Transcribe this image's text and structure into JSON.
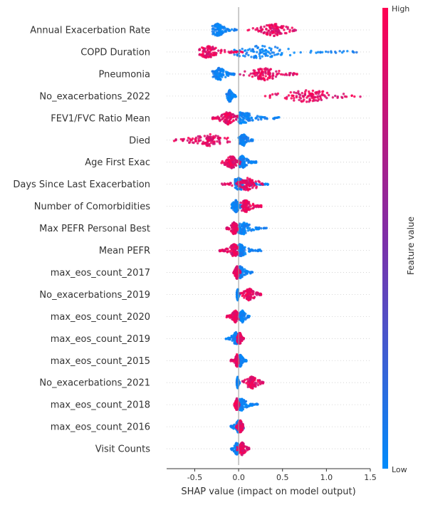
{
  "chart_data": {
    "type": "scatter",
    "subtype": "shap-beeswarm",
    "xlabel": "SHAP value (impact on model output)",
    "xlim": [
      -0.82,
      1.5
    ],
    "x_ticks": [
      "-0.5",
      "0.0",
      "0.5",
      "1.0",
      "1.5"
    ],
    "x_tick_values": [
      -0.5,
      0.0,
      0.5,
      1.0,
      1.5
    ],
    "zero_line": true,
    "grid": false,
    "colorbar": {
      "label": "Feature value",
      "high_label": "High",
      "low_label": "Low",
      "high_color": "#ff0052",
      "mid_color": "#7e2ea8",
      "low_color": "#008bfb"
    },
    "features": [
      {
        "name": "Annual Exacerbation Rate",
        "low": {
          "min": -0.3,
          "max": -0.02,
          "center": -0.24
        },
        "high": {
          "min": 0.09,
          "max": 0.67,
          "center": 0.4
        }
      },
      {
        "name": "COPD Duration",
        "low": {
          "min": -0.05,
          "max": 1.35,
          "center": 0.25
        },
        "high": {
          "min": -0.45,
          "max": 0.05,
          "center": -0.35
        }
      },
      {
        "name": "Pneumonia",
        "low": {
          "min": -0.3,
          "max": -0.04,
          "center": -0.22
        },
        "high": {
          "min": -0.02,
          "max": 0.67,
          "center": 0.3
        }
      },
      {
        "name": "No_exacerbations_2022",
        "low": {
          "min": -0.14,
          "max": -0.03,
          "center": -0.1
        },
        "high": {
          "min": 0.3,
          "max": 1.4,
          "center": 0.8
        }
      },
      {
        "name": "FEV1/FVC Ratio Mean",
        "low": {
          "min": 0.0,
          "max": 0.47,
          "center": 0.05
        },
        "high": {
          "min": -0.3,
          "max": 0.0,
          "center": -0.12
        }
      },
      {
        "name": "Died",
        "low": {
          "min": 0.0,
          "max": 0.18,
          "center": 0.05
        },
        "high": {
          "min": -0.75,
          "max": -0.1,
          "center": -0.35
        }
      },
      {
        "name": "Age First Exac",
        "low": {
          "min": 0.0,
          "max": 0.2,
          "center": 0.04
        },
        "high": {
          "min": -0.22,
          "max": 0.02,
          "center": -0.08
        }
      },
      {
        "name": "Days Since Last Exacerbation",
        "low": {
          "min": -0.04,
          "max": 0.34,
          "center": 0.0
        },
        "high": {
          "min": -0.2,
          "max": 0.28,
          "center": 0.1
        }
      },
      {
        "name": "Number of Comorbidities",
        "low": {
          "min": -0.08,
          "max": 0.05,
          "center": -0.03
        },
        "high": {
          "min": 0.02,
          "max": 0.27,
          "center": 0.08
        }
      },
      {
        "name": "Max PEFR Personal Best",
        "low": {
          "min": 0.0,
          "max": 0.32,
          "center": 0.05
        },
        "high": {
          "min": -0.14,
          "max": 0.0,
          "center": -0.05
        }
      },
      {
        "name": "Mean PEFR",
        "low": {
          "min": 0.0,
          "max": 0.26,
          "center": 0.02
        },
        "high": {
          "min": -0.22,
          "max": 0.0,
          "center": -0.05
        }
      },
      {
        "name": "max_eos_count_2017",
        "low": {
          "min": -0.02,
          "max": 0.16,
          "center": 0.02
        },
        "high": {
          "min": -0.06,
          "max": 0.02,
          "center": -0.02
        }
      },
      {
        "name": "No_exacerbations_2019",
        "low": {
          "min": -0.02,
          "max": 0.01,
          "center": -0.01
        },
        "high": {
          "min": 0.02,
          "max": 0.26,
          "center": 0.12
        }
      },
      {
        "name": "max_eos_count_2020",
        "low": {
          "min": 0.0,
          "max": 0.13,
          "center": 0.04
        },
        "high": {
          "min": -0.14,
          "max": 0.0,
          "center": -0.04
        }
      },
      {
        "name": "max_eos_count_2019",
        "low": {
          "min": -0.15,
          "max": 0.0,
          "center": -0.03
        },
        "high": {
          "min": -0.02,
          "max": 0.06,
          "center": 0.01
        }
      },
      {
        "name": "max_eos_count_2015",
        "low": {
          "min": 0.0,
          "max": 0.09,
          "center": 0.02
        },
        "high": {
          "min": -0.09,
          "max": 0.0,
          "center": -0.02
        }
      },
      {
        "name": "No_exacerbations_2021",
        "low": {
          "min": -0.02,
          "max": 0.01,
          "center": -0.01
        },
        "high": {
          "min": 0.04,
          "max": 0.29,
          "center": 0.15
        }
      },
      {
        "name": "max_eos_count_2018",
        "low": {
          "min": 0.0,
          "max": 0.22,
          "center": 0.03
        },
        "high": {
          "min": -0.05,
          "max": 0.01,
          "center": -0.02
        }
      },
      {
        "name": "max_eos_count_2016",
        "low": {
          "min": -0.09,
          "max": 0.06,
          "center": 0.0
        },
        "high": {
          "min": -0.03,
          "max": 0.06,
          "center": 0.02
        }
      },
      {
        "name": "Visit Counts",
        "low": {
          "min": -0.09,
          "max": 0.04,
          "center": -0.02
        },
        "high": {
          "min": -0.02,
          "max": 0.12,
          "center": 0.04
        }
      }
    ]
  }
}
